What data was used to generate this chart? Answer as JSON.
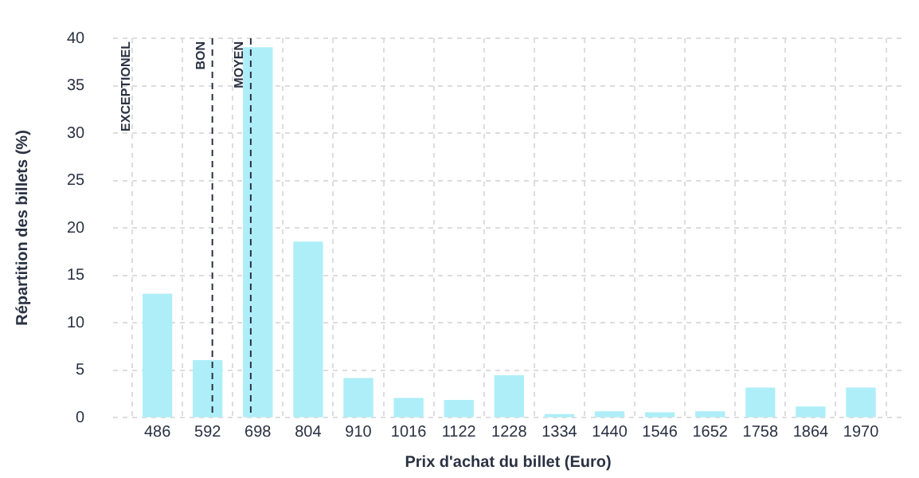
{
  "chart_data": {
    "type": "bar",
    "xlabel": "Prix d'achat du billet (Euro)",
    "ylabel": "Répartition des billets (%)",
    "x": [
      486,
      592,
      698,
      804,
      910,
      1016,
      1122,
      1228,
      1334,
      1440,
      1546,
      1652,
      1758,
      1864,
      1970
    ],
    "values": [
      13,
      6,
      39,
      18.5,
      4.1,
      2,
      1.8,
      4.4,
      0.3,
      0.6,
      0.5,
      0.6,
      3.1,
      1.1,
      3.1
    ],
    "color": "#aeeef8",
    "xlim": [
      393,
      2059
    ],
    "xticks": [
      486,
      592,
      698,
      804,
      910,
      1016,
      1122,
      1228,
      1334,
      1440,
      1546,
      1652,
      1758,
      1864,
      1970
    ],
    "ylim": [
      0,
      40
    ],
    "yticks": [
      0,
      5,
      10,
      15,
      20,
      25,
      30,
      35,
      40
    ],
    "grid": true,
    "legend": false,
    "ref_lines": [
      {
        "axis": "x",
        "value": 602,
        "label": "BON",
        "color": "#2a3142",
        "line_style": "dashed"
      },
      {
        "axis": "x",
        "value": 683,
        "label": "MOYEN",
        "color": "#2a3142",
        "line_style": "dashed"
      }
    ],
    "annotations": [
      "EXCEPTIONEL"
    ]
  }
}
